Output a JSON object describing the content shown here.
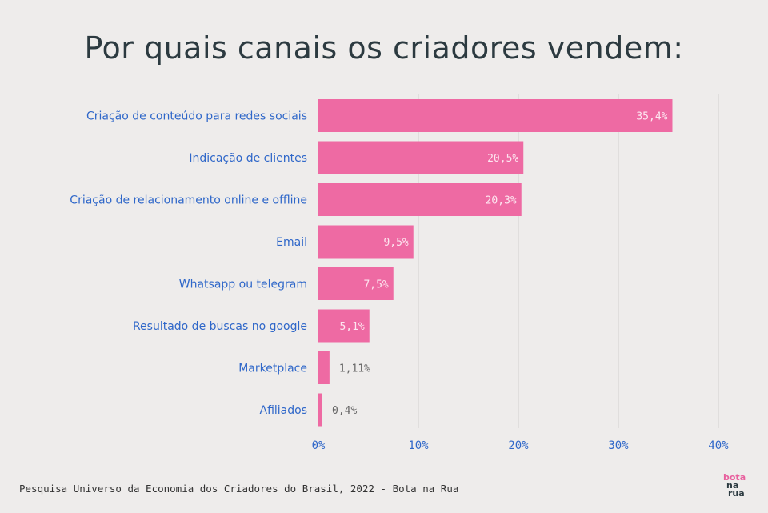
{
  "title": "Por quais canais os criadores vendem:",
  "footer": "Pesquisa Universo da Economia dos Criadores do Brasil, 2022 - Bota na Rua",
  "logo": {
    "line1": "bota",
    "line2": "na",
    "line3": "rua"
  },
  "colors": {
    "bar": "#ee6aa3",
    "category_label": "#2f67c9",
    "tick_label": "#2f67c9",
    "title": "#2c3a40",
    "value_outside": "#666666",
    "value_inside": "#fde6f0"
  },
  "chart_data": {
    "type": "bar",
    "orientation": "horizontal",
    "title": "Por quais canais os criadores vendem:",
    "categories": [
      "Criação de conteúdo para redes sociais",
      "Indicação de clientes",
      "Criação de relacionamento online e offline",
      "Email",
      "Whatsapp ou telegram",
      "Resultado de buscas no google",
      "Marketplace",
      "Afiliados"
    ],
    "values": [
      35.4,
      20.5,
      20.3,
      9.5,
      7.5,
      5.1,
      1.11,
      0.4
    ],
    "value_labels": [
      "35,4%",
      "20,5%",
      "20,3%",
      "9,5%",
      "7,5%",
      "5,1%",
      "1,11%",
      "0,4%"
    ],
    "xlim": [
      0,
      40
    ],
    "xticks": [
      0,
      10,
      20,
      30,
      40
    ],
    "xtick_labels": [
      "0%",
      "10%",
      "20%",
      "30%",
      "40%"
    ],
    "grid": "vertical",
    "legend": "none"
  }
}
